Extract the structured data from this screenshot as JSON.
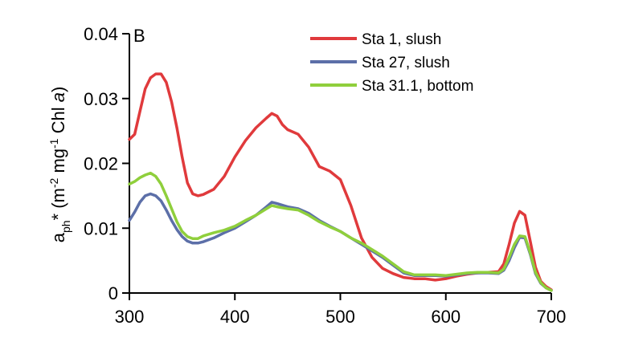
{
  "chart_data": {
    "type": "line",
    "panel_label": "B",
    "ylabel": {
      "parts": [
        {
          "text": "a",
          "style": "normal"
        },
        {
          "text": "ph",
          "style": "sub"
        },
        {
          "text": "* (m",
          "style": "normal"
        },
        {
          "text": "-2",
          "style": "sup"
        },
        {
          "text": " mg",
          "style": "normal"
        },
        {
          "text": "-1",
          "style": "sup"
        },
        {
          "text": " Chl ",
          "style": "normal"
        },
        {
          "text": "a",
          "style": "italic"
        },
        {
          "text": ")",
          "style": "normal"
        }
      ]
    },
    "xlabel": "",
    "xlim": [
      300,
      700
    ],
    "ylim": [
      0,
      0.04
    ],
    "xticks": [
      300,
      400,
      500,
      600,
      700
    ],
    "xtick_labels": [
      "300",
      "400",
      "500",
      "600",
      "700"
    ],
    "yticks": [
      0,
      0.01,
      0.02,
      0.03,
      0.04
    ],
    "ytick_labels": [
      "0",
      "0.01",
      "0.02",
      "0.03",
      "0.04"
    ],
    "grid": false,
    "legend_position": "top-right",
    "series": [
      {
        "name": "Sta 1, slush",
        "color": "#e03a3c",
        "points": [
          [
            300,
            0.0237
          ],
          [
            305,
            0.0245
          ],
          [
            310,
            0.028
          ],
          [
            315,
            0.0315
          ],
          [
            320,
            0.0332
          ],
          [
            325,
            0.0338
          ],
          [
            330,
            0.0338
          ],
          [
            335,
            0.0325
          ],
          [
            340,
            0.0295
          ],
          [
            345,
            0.0255
          ],
          [
            350,
            0.021
          ],
          [
            355,
            0.017
          ],
          [
            360,
            0.0153
          ],
          [
            365,
            0.015
          ],
          [
            370,
            0.0152
          ],
          [
            380,
            0.016
          ],
          [
            390,
            0.018
          ],
          [
            400,
            0.021
          ],
          [
            410,
            0.0235
          ],
          [
            420,
            0.0255
          ],
          [
            430,
            0.027
          ],
          [
            435,
            0.0277
          ],
          [
            440,
            0.0273
          ],
          [
            445,
            0.026
          ],
          [
            450,
            0.0252
          ],
          [
            460,
            0.0245
          ],
          [
            470,
            0.0225
          ],
          [
            480,
            0.0195
          ],
          [
            490,
            0.0188
          ],
          [
            500,
            0.0175
          ],
          [
            510,
            0.0135
          ],
          [
            520,
            0.0085
          ],
          [
            530,
            0.0055
          ],
          [
            540,
            0.0038
          ],
          [
            550,
            0.003
          ],
          [
            560,
            0.0024
          ],
          [
            570,
            0.0022
          ],
          [
            580,
            0.0022
          ],
          [
            590,
            0.002
          ],
          [
            600,
            0.0022
          ],
          [
            610,
            0.0026
          ],
          [
            620,
            0.0029
          ],
          [
            630,
            0.0031
          ],
          [
            640,
            0.0032
          ],
          [
            650,
            0.0033
          ],
          [
            655,
            0.0045
          ],
          [
            660,
            0.0075
          ],
          [
            665,
            0.0108
          ],
          [
            670,
            0.0126
          ],
          [
            675,
            0.012
          ],
          [
            680,
            0.008
          ],
          [
            685,
            0.004
          ],
          [
            690,
            0.0018
          ],
          [
            695,
            0.001
          ],
          [
            700,
            0.0005
          ]
        ]
      },
      {
        "name": "Sta 27, slush",
        "color": "#5c6fa8",
        "points": [
          [
            300,
            0.0112
          ],
          [
            305,
            0.0125
          ],
          [
            310,
            0.014
          ],
          [
            315,
            0.015
          ],
          [
            320,
            0.0153
          ],
          [
            325,
            0.015
          ],
          [
            330,
            0.0142
          ],
          [
            335,
            0.0128
          ],
          [
            340,
            0.0112
          ],
          [
            345,
            0.0098
          ],
          [
            350,
            0.0087
          ],
          [
            355,
            0.008
          ],
          [
            360,
            0.0077
          ],
          [
            365,
            0.0077
          ],
          [
            370,
            0.0079
          ],
          [
            380,
            0.0085
          ],
          [
            390,
            0.0093
          ],
          [
            400,
            0.01
          ],
          [
            410,
            0.011
          ],
          [
            420,
            0.012
          ],
          [
            430,
            0.0133
          ],
          [
            435,
            0.014
          ],
          [
            440,
            0.0138
          ],
          [
            450,
            0.0133
          ],
          [
            460,
            0.013
          ],
          [
            470,
            0.0123
          ],
          [
            480,
            0.0112
          ],
          [
            490,
            0.0103
          ],
          [
            500,
            0.0095
          ],
          [
            510,
            0.0085
          ],
          [
            520,
            0.0075
          ],
          [
            530,
            0.0065
          ],
          [
            540,
            0.0055
          ],
          [
            550,
            0.0043
          ],
          [
            560,
            0.0031
          ],
          [
            570,
            0.0027
          ],
          [
            580,
            0.0027
          ],
          [
            590,
            0.0027
          ],
          [
            600,
            0.0026
          ],
          [
            610,
            0.0028
          ],
          [
            620,
            0.003
          ],
          [
            630,
            0.0031
          ],
          [
            640,
            0.0031
          ],
          [
            650,
            0.003
          ],
          [
            655,
            0.0035
          ],
          [
            660,
            0.005
          ],
          [
            665,
            0.007
          ],
          [
            670,
            0.0086
          ],
          [
            675,
            0.0085
          ],
          [
            680,
            0.006
          ],
          [
            685,
            0.003
          ],
          [
            690,
            0.0015
          ],
          [
            695,
            0.0008
          ],
          [
            700,
            0.0004
          ]
        ]
      },
      {
        "name": "Sta 31.1, bottom",
        "color": "#8fcf3c",
        "points": [
          [
            300,
            0.0168
          ],
          [
            305,
            0.0172
          ],
          [
            310,
            0.0178
          ],
          [
            315,
            0.0182
          ],
          [
            320,
            0.0185
          ],
          [
            325,
            0.018
          ],
          [
            330,
            0.0168
          ],
          [
            335,
            0.015
          ],
          [
            340,
            0.013
          ],
          [
            345,
            0.011
          ],
          [
            350,
            0.0095
          ],
          [
            355,
            0.0087
          ],
          [
            360,
            0.0084
          ],
          [
            365,
            0.0084
          ],
          [
            370,
            0.0088
          ],
          [
            380,
            0.0093
          ],
          [
            390,
            0.0097
          ],
          [
            400,
            0.0103
          ],
          [
            410,
            0.0112
          ],
          [
            420,
            0.012
          ],
          [
            430,
            0.013
          ],
          [
            435,
            0.0135
          ],
          [
            440,
            0.0133
          ],
          [
            450,
            0.013
          ],
          [
            460,
            0.0128
          ],
          [
            470,
            0.012
          ],
          [
            480,
            0.011
          ],
          [
            490,
            0.0102
          ],
          [
            500,
            0.0095
          ],
          [
            510,
            0.0085
          ],
          [
            520,
            0.0077
          ],
          [
            530,
            0.0067
          ],
          [
            540,
            0.0057
          ],
          [
            550,
            0.0045
          ],
          [
            560,
            0.0033
          ],
          [
            570,
            0.0028
          ],
          [
            580,
            0.0028
          ],
          [
            590,
            0.0028
          ],
          [
            600,
            0.0027
          ],
          [
            610,
            0.0029
          ],
          [
            620,
            0.0031
          ],
          [
            630,
            0.0032
          ],
          [
            640,
            0.0032
          ],
          [
            650,
            0.0031
          ],
          [
            655,
            0.0037
          ],
          [
            660,
            0.0055
          ],
          [
            665,
            0.0075
          ],
          [
            670,
            0.0088
          ],
          [
            675,
            0.0087
          ],
          [
            680,
            0.0062
          ],
          [
            685,
            0.0032
          ],
          [
            690,
            0.0016
          ],
          [
            695,
            0.0008
          ],
          [
            700,
            0.0004
          ]
        ]
      }
    ]
  }
}
